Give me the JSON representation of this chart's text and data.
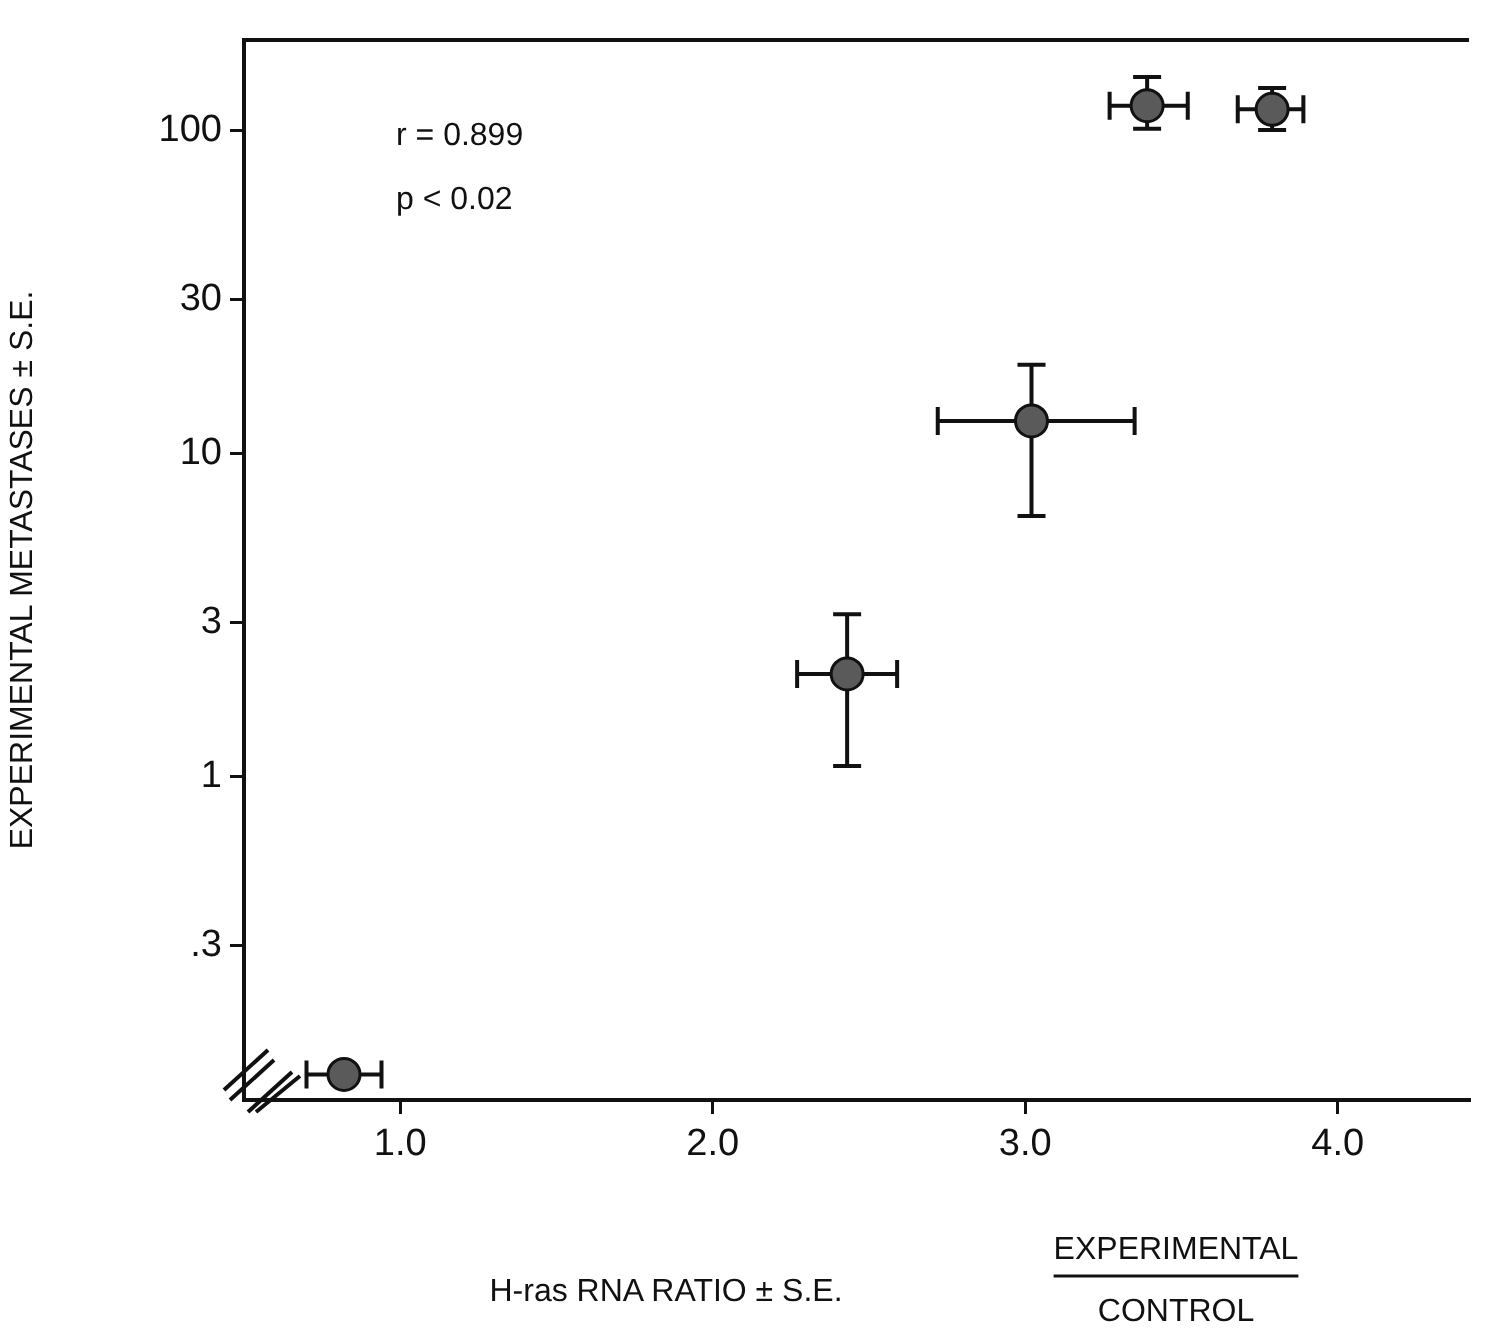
{
  "chart_data": {
    "type": "scatter",
    "x": [
      0.82,
      2.43,
      3.02,
      3.39,
      3.79
    ],
    "values": [
      0.12,
      2.08,
      12.6,
      119,
      116
    ],
    "errors": [
      null,
      [
        1.08,
        3.18
      ],
      [
        6.4,
        18.8
      ],
      [
        101,
        146
      ],
      [
        100,
        135
      ]
    ],
    "xerrors": [
      [
        0.7,
        0.94
      ],
      [
        2.27,
        2.59
      ],
      [
        2.72,
        3.35
      ],
      [
        3.27,
        3.52
      ],
      [
        3.68,
        3.89
      ]
    ],
    "color": "#5a5a5a",
    "marker": "circle",
    "log": "y",
    "xlim": [
      0.5,
      4.42
    ],
    "ylim": [
      0.1,
      190
    ],
    "xticks": [
      {
        "value": 1,
        "label": "1.0"
      },
      {
        "value": 2,
        "label": "2.0"
      },
      {
        "value": 3,
        "label": "3.0"
      },
      {
        "value": 4,
        "label": "4.0"
      }
    ],
    "yticks": [
      {
        "value": 0.3,
        "label": ".3"
      },
      1,
      3,
      10,
      30,
      100
    ],
    "xlabel": "H-ras RNA RATIO ± S.E.",
    "ylabel": "EXPERIMENTAL METASTASES ± S.E.",
    "annotations": [
      "r = 0.899",
      "p < 0.02",
      "EXPERIMENTAL",
      "CONTROL"
    ],
    "grid": false,
    "legend": false
  }
}
